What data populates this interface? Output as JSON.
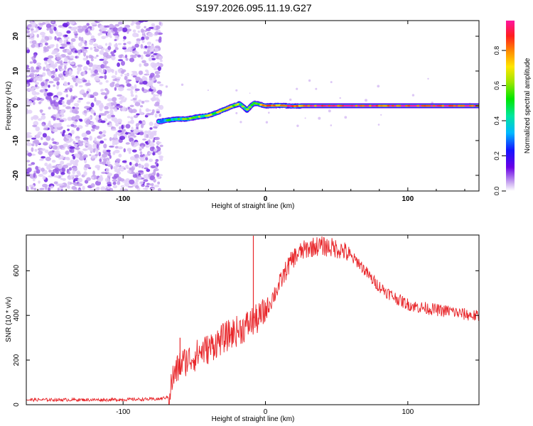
{
  "figure_title": "S197.2026.095.11.19.G27",
  "chart_data": [
    {
      "type": "heatmap",
      "title": "S197.2026.095.11.19.G27",
      "xlabel": "Height of straight line (km)",
      "ylabel": "Frequency (Hz)",
      "xlim": [
        -168,
        150
      ],
      "ylim": [
        -24.5,
        24.5
      ],
      "xticks": [
        -100,
        0,
        100
      ],
      "xtick_labels": [
        "-100",
        "0",
        "100"
      ],
      "yticks": [
        -20,
        -10,
        0,
        10,
        20
      ],
      "ytick_labels": [
        "-20",
        "-10",
        "0",
        "10",
        "20"
      ],
      "noise_region_x": [
        -168,
        -73
      ],
      "signal_track": {
        "x": [
          -75,
          -70,
          -62,
          -55,
          -48,
          -40,
          -33,
          -25,
          -18,
          -13,
          -8,
          0,
          10,
          20,
          25,
          50,
          100,
          150
        ],
        "freq": [
          -4.5,
          -4.2,
          -3.8,
          -3.8,
          -3.2,
          -2.8,
          -1.8,
          -0.4,
          0.6,
          -1.2,
          0.8,
          0.0,
          0.1,
          -0.1,
          0.0,
          0.0,
          0.0,
          0.0
        ],
        "amplitude": [
          0.35,
          0.45,
          0.5,
          0.6,
          0.55,
          0.6,
          0.65,
          0.7,
          0.6,
          0.5,
          0.6,
          0.75,
          0.85,
          0.85,
          0.9,
          0.95,
          0.95,
          0.95
        ]
      },
      "colorbar": {
        "label": "Normalized spectral amplitude",
        "range": [
          0,
          0.97
        ],
        "ticks": [
          0.0,
          0.2,
          0.4,
          0.6,
          0.8
        ],
        "tick_labels": [
          "0.0",
          "0.2",
          "0.4",
          "0.6",
          "0.8"
        ]
      }
    },
    {
      "type": "line",
      "xlabel": "Height of straight line (km)",
      "ylabel": "SNR (10 * v/v)",
      "xlim": [
        -168,
        150
      ],
      "ylim": [
        0,
        760
      ],
      "xticks": [
        -100,
        0,
        100
      ],
      "xtick_labels": [
        "-100",
        "0",
        "100"
      ],
      "yticks": [
        0,
        200,
        400,
        600
      ],
      "ytick_labels": [
        "0",
        "200",
        "400",
        "600"
      ],
      "line_color": "#e8272b",
      "series": [
        {
          "name": "SNR",
          "x": [
            -168,
            -150,
            -130,
            -110,
            -90,
            -75,
            -68,
            -65,
            -60,
            -55,
            -50,
            -45,
            -40,
            -35,
            -30,
            -25,
            -20,
            -15,
            -10,
            -5,
            0,
            5,
            10,
            15,
            20,
            25,
            30,
            35,
            40,
            45,
            50,
            55,
            60,
            65,
            70,
            75,
            80,
            85,
            90,
            95,
            100,
            105,
            110,
            115,
            120,
            125,
            130,
            135,
            140,
            145,
            150
          ],
          "y": [
            22,
            22,
            22,
            22,
            24,
            25,
            35,
            120,
            180,
            200,
            215,
            240,
            250,
            275,
            295,
            315,
            330,
            345,
            370,
            385,
            420,
            480,
            540,
            610,
            660,
            685,
            700,
            710,
            710,
            705,
            700,
            690,
            660,
            640,
            600,
            560,
            530,
            505,
            485,
            465,
            450,
            440,
            435,
            430,
            425,
            420,
            420,
            410,
            405,
            400,
            395
          ]
        }
      ],
      "spikes": [
        {
          "x": -8.5,
          "y": 757
        },
        {
          "x": -60,
          "y": 300
        }
      ]
    }
  ]
}
